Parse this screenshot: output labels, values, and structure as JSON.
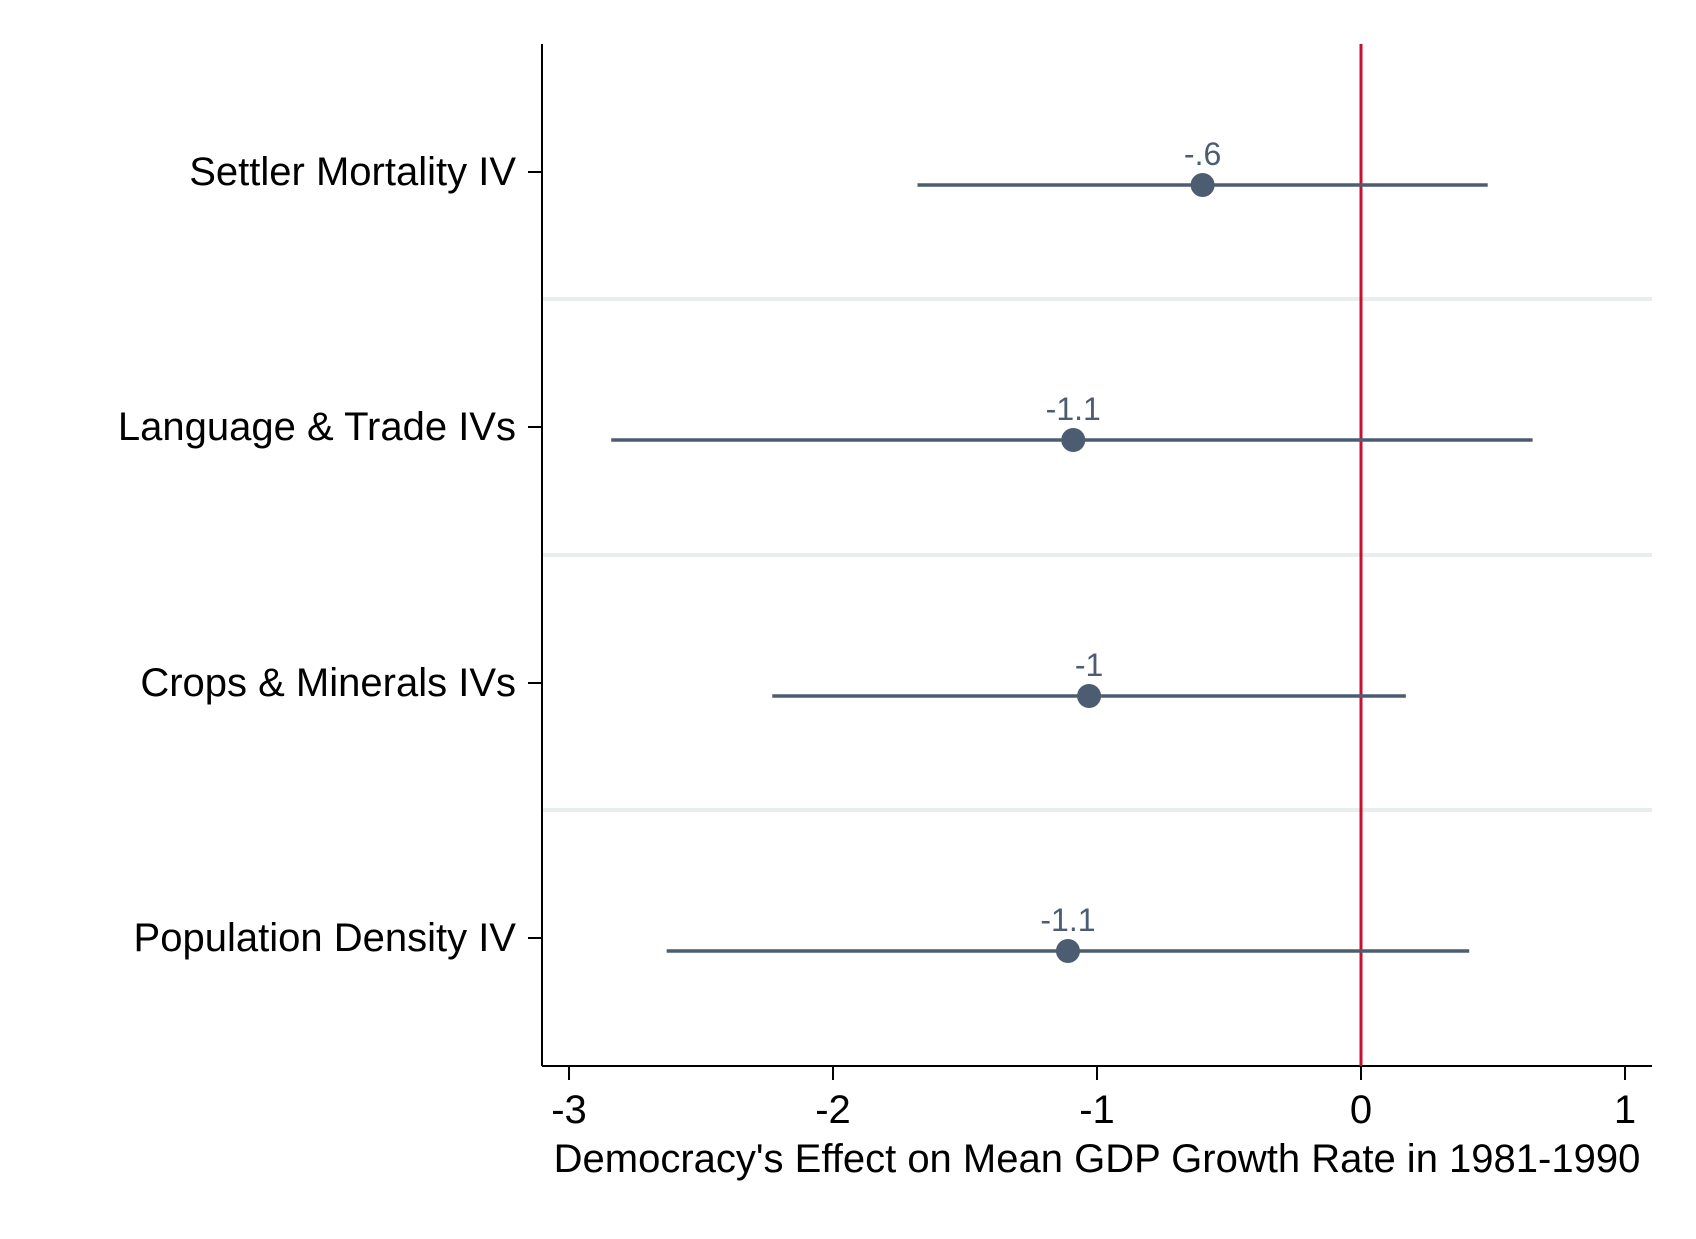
{
  "chart_data": {
    "type": "coefficient_plot",
    "title": "",
    "xlabel": "Democracy's Effect on Mean GDP Growth Rate in 1981-1990",
    "ylabel": "",
    "xlim": [
      -3.1,
      1.1
    ],
    "xticks": [
      {
        "value": -3,
        "label": "-3"
      },
      {
        "value": -2,
        "label": "-2"
      },
      {
        "value": -1,
        "label": "-1"
      },
      {
        "value": 0,
        "label": "0"
      },
      {
        "value": 1,
        "label": "1"
      }
    ],
    "reference_line": {
      "x": 0,
      "color": "#c8102e"
    },
    "marker_color": "#4c5d72",
    "separator_color": "#e8eeee",
    "estimates": [
      {
        "label": "Settler Mortality IV",
        "estimate": -0.6,
        "ci_low": -1.68,
        "ci_high": 0.48,
        "value_label": "-.6"
      },
      {
        "label": "Language & Trade IVs",
        "estimate": -1.09,
        "ci_low": -2.84,
        "ci_high": 0.65,
        "value_label": "-1.1"
      },
      {
        "label": "Crops & Minerals IVs",
        "estimate": -1.03,
        "ci_low": -2.23,
        "ci_high": 0.17,
        "value_label": "-1"
      },
      {
        "label": "Population Density IV",
        "estimate": -1.11,
        "ci_low": -2.63,
        "ci_high": 0.41,
        "value_label": "-1.1"
      }
    ],
    "grid": false,
    "legend": "none"
  }
}
